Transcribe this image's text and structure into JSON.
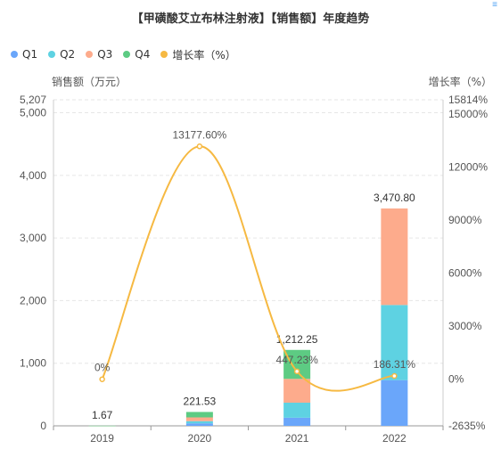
{
  "chart_data": {
    "type": "bar",
    "title": "【甲磺酸艾立布林注射液】【销售额】年度趋势",
    "categories": [
      "2019",
      "2020",
      "2021",
      "2022"
    ],
    "stacked": true,
    "series": [
      {
        "name": "Q1",
        "color": "#6aa6fa",
        "values": [
          0.5,
          40,
          130,
          730
        ]
      },
      {
        "name": "Q2",
        "color": "#5ed2e2",
        "values": [
          0.4,
          35,
          240,
          1200
        ]
      },
      {
        "name": "Q3",
        "color": "#fdab8c",
        "values": [
          0.4,
          60,
          380,
          1540.8
        ]
      },
      {
        "name": "Q4",
        "color": "#5dcb83",
        "values": [
          0.37,
          86.53,
          462.25,
          0
        ]
      }
    ],
    "totals": [
      "1.67",
      "221.53",
      "1,212.25",
      "3,470.80"
    ],
    "line_series": {
      "name": "增长率（%）",
      "color": "#f6b942",
      "values": [
        0,
        13177.6,
        447.23,
        186.31
      ],
      "labels": [
        "0%",
        "13177.60%",
        "447.23%",
        "186.31%"
      ]
    },
    "y_left": {
      "label": "销售额（万元）",
      "min": 0,
      "max": 5207,
      "ticks": [
        0,
        1000,
        2000,
        3000,
        4000,
        5000
      ],
      "tick_labels": [
        "0",
        "1,000",
        "2,000",
        "3,000",
        "4,000",
        "5,000"
      ],
      "max_label": "5,207"
    },
    "y_right": {
      "label": "增长率（%）",
      "min": -2635,
      "max": 15814,
      "ticks": [
        0,
        3000,
        6000,
        9000,
        12000,
        15000
      ],
      "tick_labels": [
        "0%",
        "3000%",
        "6000%",
        "9000%",
        "12000%",
        "15000%"
      ],
      "min_label": "-2635%",
      "max_label": "15814%"
    },
    "grid": true,
    "legend_position": "top-left"
  },
  "corner_mark": "≡"
}
